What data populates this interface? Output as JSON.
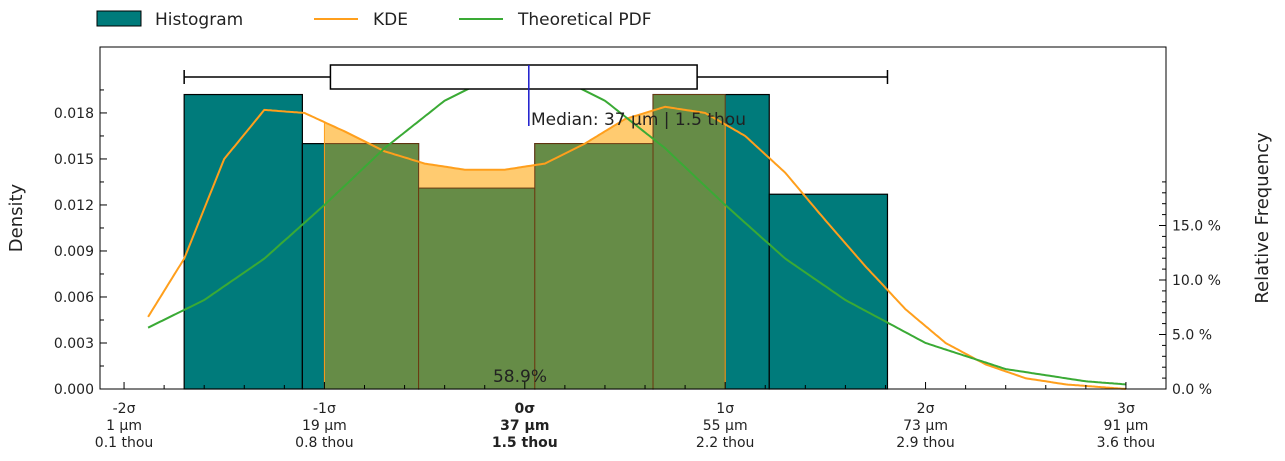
{
  "chart_data": {
    "type": "histogram",
    "legend": {
      "placement": "top-left",
      "entries": [
        {
          "label": "Histogram",
          "kind": "patch",
          "color": "#007b7b"
        },
        {
          "label": "KDE",
          "kind": "line",
          "color": "#ff9f1c"
        },
        {
          "label": "Theoretical PDF",
          "kind": "line",
          "color": "#3aaa35"
        }
      ]
    },
    "colors": {
      "histogram": "#007b7b",
      "kde": "#ff9f1c",
      "kde_fill": "#ffc560",
      "overlap_fill": "#668c47",
      "pdf": "#3aaa35",
      "median_line": "#1a1acc"
    },
    "x_axis": {
      "range": [
        -2.12,
        3.2
      ],
      "ticks": [
        {
          "value": -2,
          "sigma": "-2σ",
          "um": "1 µm",
          "thou": "0.1 thou",
          "bold": false
        },
        {
          "value": -1,
          "sigma": "-1σ",
          "um": "19 µm",
          "thou": "0.8 thou",
          "bold": false
        },
        {
          "value": 0,
          "sigma": "0σ",
          "um": "37 µm",
          "thou": "1.5 thou",
          "bold": true
        },
        {
          "value": 1,
          "sigma": "1σ",
          "um": "55 µm",
          "thou": "2.2 thou",
          "bold": false
        },
        {
          "value": 2,
          "sigma": "2σ",
          "um": "73 µm",
          "thou": "2.9 thou",
          "bold": false
        },
        {
          "value": 3,
          "sigma": "3σ",
          "um": "91 µm",
          "thou": "3.6 thou",
          "bold": false
        }
      ]
    },
    "y_left": {
      "label": "Density",
      "range": [
        0,
        0.0223
      ],
      "ticks": [
        "0.000",
        "0.003",
        "0.006",
        "0.009",
        "0.012",
        "0.015",
        "0.018"
      ],
      "tick_values": [
        0,
        0.003,
        0.006,
        0.009,
        0.012,
        0.015,
        0.018
      ]
    },
    "y_right": {
      "label": "Relative Frequency",
      "ticks": [
        "0.0 %",
        "5.0 %",
        "10.0 %",
        "15.0 %"
      ],
      "tick_values": [
        0,
        5,
        10,
        15
      ]
    },
    "histogram": [
      {
        "x0": -1.7,
        "x1": -1.11,
        "density": 0.0192
      },
      {
        "x0": -1.11,
        "x1": -0.53,
        "density": 0.016
      },
      {
        "x0": -0.53,
        "x1": 0.05,
        "density": 0.0131
      },
      {
        "x0": 0.05,
        "x1": 0.64,
        "density": 0.016
      },
      {
        "x0": 0.64,
        "x1": 1.22,
        "density": 0.0192
      },
      {
        "x0": 1.22,
        "x1": 1.81,
        "density": 0.0127
      }
    ],
    "kde": {
      "x": [
        -1.88,
        -1.7,
        -1.5,
        -1.3,
        -1.1,
        -0.9,
        -0.7,
        -0.5,
        -0.3,
        -0.1,
        0.1,
        0.3,
        0.5,
        0.7,
        0.9,
        1.1,
        1.3,
        1.5,
        1.7,
        1.9,
        2.1,
        2.3,
        2.5,
        2.7,
        2.9,
        3.0
      ],
      "y": [
        0.0047,
        0.0085,
        0.015,
        0.0182,
        0.018,
        0.0168,
        0.0155,
        0.0147,
        0.0143,
        0.0143,
        0.0147,
        0.016,
        0.0176,
        0.0184,
        0.018,
        0.0165,
        0.0141,
        0.011,
        0.008,
        0.0052,
        0.003,
        0.0016,
        0.0007,
        0.0003,
        0.0001,
        0.0
      ]
    },
    "kde_shaded_range": [
      -1.0,
      1.0
    ],
    "kde_shaded_label": "58.9%",
    "pdf": {
      "x": [
        -1.88,
        -1.6,
        -1.3,
        -1.0,
        -0.7,
        -0.4,
        -0.2,
        0.0,
        0.2,
        0.4,
        0.7,
        1.0,
        1.3,
        1.6,
        2.0,
        2.4,
        2.8,
        3.0
      ],
      "y": [
        0.004,
        0.0058,
        0.0085,
        0.012,
        0.0157,
        0.0188,
        0.0201,
        0.0205,
        0.0201,
        0.0188,
        0.0157,
        0.012,
        0.0085,
        0.0058,
        0.003,
        0.0013,
        0.0005,
        0.0003
      ]
    },
    "boxplot": {
      "whisker_low": -1.7,
      "q1": -0.97,
      "median": 0.02,
      "q3": 0.86,
      "whisker_high": 1.81
    },
    "median_label": "Median: 37 µm | 1.5 thou",
    "grid": false
  }
}
